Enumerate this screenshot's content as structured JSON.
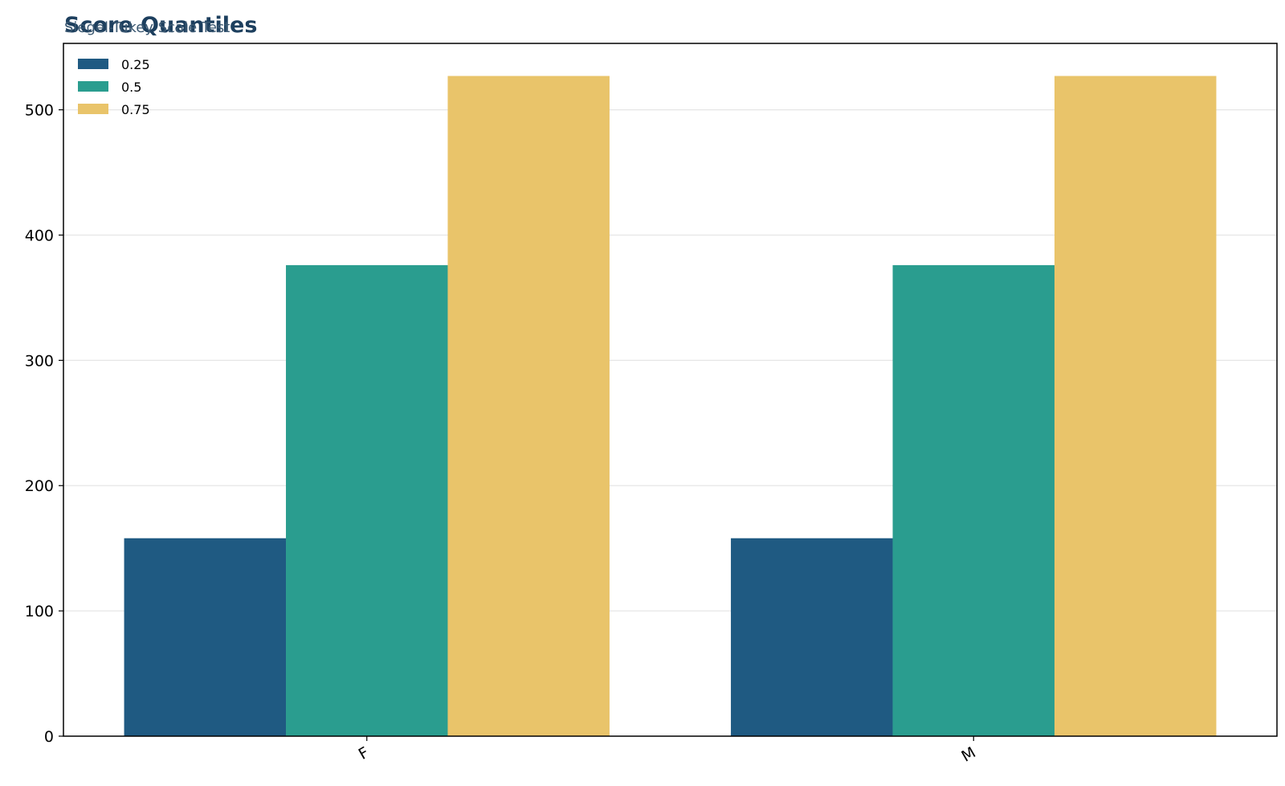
{
  "chart_data": {
    "type": "bar",
    "title": "Score Quantiles",
    "subtitle": "Siegel-Tukey Scale Test",
    "xlabel": "",
    "ylabel": "",
    "categories": [
      "F",
      "M"
    ],
    "series": [
      {
        "name": "0.25",
        "values": [
          158,
          158
        ],
        "color": "#1f5a82"
      },
      {
        "name": "0.5",
        "values": [
          376,
          376
        ],
        "color": "#2a9d8f"
      },
      {
        "name": "0.75",
        "values": [
          527,
          527
        ],
        "color": "#e9c46a"
      }
    ],
    "ylim": [
      0,
      553
    ],
    "yticks": [
      0,
      100,
      200,
      300,
      400,
      500
    ],
    "grid": "y",
    "legend_position": "top-left",
    "title_color": "#1d3f5e",
    "subtitle_color": "#3d5a73"
  }
}
